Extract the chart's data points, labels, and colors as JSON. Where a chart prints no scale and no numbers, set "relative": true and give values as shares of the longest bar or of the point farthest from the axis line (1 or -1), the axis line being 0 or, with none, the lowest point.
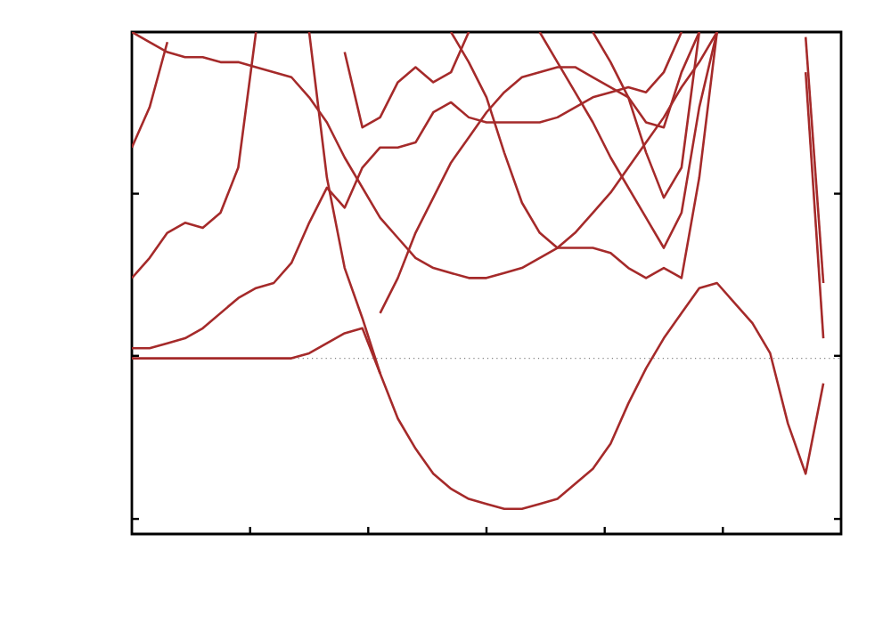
{
  "chart_data": {
    "type": "line",
    "relative": true,
    "color": "#a52a2a",
    "marker": "none",
    "line_style": "solid",
    "categories": [
      null,
      null,
      null,
      null,
      null,
      null,
      null,
      null,
      null,
      null,
      null,
      null,
      null,
      null,
      null,
      null,
      null,
      null,
      null,
      null,
      null,
      null,
      null,
      null,
      null,
      null,
      null,
      null,
      null,
      null,
      null,
      null,
      null,
      null,
      null,
      null,
      null,
      null,
      null,
      null,
      null
    ],
    "ref_lines": [
      {
        "axis": "y",
        "value": 0.35,
        "color": "#808080",
        "line_style": "dotted"
      }
    ],
    "series": [
      {
        "values": [
          0.35,
          0.35,
          0.35,
          0.35,
          0.35,
          0.35,
          0.35,
          0.35,
          0.35,
          0.35,
          0.36,
          0.38,
          0.4,
          0.41,
          0.32,
          0.23,
          0.17,
          0.12,
          0.09,
          0.07,
          0.06,
          0.05,
          0.05,
          0.06,
          0.07,
          0.1,
          0.13,
          0.18,
          0.26,
          0.33,
          0.39,
          0.44,
          0.49,
          0.5,
          0.46,
          0.42,
          0.36,
          0.22,
          0.12,
          0.3,
          null
        ]
      },
      {
        "values": [
          0.37,
          0.37,
          0.38,
          0.39,
          0.41,
          0.44,
          0.47,
          0.49,
          0.5,
          0.54,
          0.62,
          0.69,
          0.65,
          0.73,
          0.77,
          0.77,
          0.78,
          0.84,
          0.86,
          0.83,
          0.82,
          0.82,
          0.82,
          0.82,
          0.83,
          0.85,
          0.87,
          0.88,
          0.89,
          0.88,
          0.92,
          1.0,
          null,
          null,
          null,
          null,
          null,
          null,
          null,
          null,
          null
        ]
      },
      {
        "values": [
          0.51,
          0.55,
          0.6,
          0.62,
          0.61,
          0.64,
          0.73,
          1.0,
          null,
          null,
          null,
          null,
          null,
          null,
          null,
          null,
          null,
          null,
          null,
          null,
          null,
          null,
          null,
          null,
          null,
          null,
          null,
          null,
          null,
          null,
          null,
          null,
          null,
          null,
          null,
          null,
          null,
          null,
          null,
          null,
          null
        ]
      },
      {
        "values": [
          0.77,
          0.85,
          0.98,
          null,
          null,
          null,
          null,
          null,
          null,
          null,
          null,
          null,
          null,
          null,
          null,
          null,
          null,
          null,
          null,
          null,
          null,
          null,
          null,
          null,
          null,
          null,
          null,
          null,
          null,
          null,
          null,
          null,
          null,
          null,
          null,
          null,
          null,
          null,
          null,
          null,
          null
        ]
      },
      {
        "values": [
          1.0,
          0.98,
          0.96,
          0.95,
          0.95,
          0.94,
          0.94,
          0.93,
          0.92,
          0.91,
          0.87,
          0.82,
          0.75,
          0.69,
          0.63,
          0.59,
          0.55,
          0.53,
          0.52,
          0.51,
          0.51,
          0.52,
          0.53,
          0.55,
          0.57,
          0.6,
          0.64,
          0.68,
          0.73,
          0.78,
          0.83,
          0.89,
          0.94,
          1.0,
          null,
          null,
          null,
          null,
          null,
          null,
          null
        ]
      },
      {
        "values": [
          null,
          null,
          null,
          null,
          null,
          null,
          null,
          null,
          null,
          null,
          null,
          null,
          null,
          null,
          0.44,
          0.51,
          0.6,
          0.67,
          0.74,
          0.79,
          0.84,
          0.88,
          0.91,
          0.92,
          0.93,
          0.93,
          0.91,
          0.89,
          0.87,
          0.82,
          0.81,
          0.92,
          1.0,
          null,
          null,
          null,
          null,
          null,
          null,
          null,
          null
        ]
      },
      {
        "values": [
          null,
          null,
          null,
          null,
          null,
          null,
          null,
          null,
          null,
          null,
          1.0,
          0.71,
          0.53,
          0.43,
          0.32,
          null,
          null,
          null,
          null,
          null,
          null,
          null,
          null,
          null,
          null,
          null,
          null,
          null,
          null,
          null,
          null,
          null,
          null,
          null,
          null,
          null,
          null,
          null,
          null,
          null,
          null
        ]
      },
      {
        "values": [
          null,
          null,
          null,
          null,
          null,
          null,
          null,
          null,
          null,
          null,
          null,
          null,
          null,
          null,
          null,
          null,
          null,
          null,
          1.0,
          0.94,
          0.87,
          0.76,
          0.66,
          0.6,
          0.57,
          0.57,
          0.57,
          0.56,
          0.53,
          0.51,
          0.53,
          0.51,
          0.71,
          1.0,
          null,
          null,
          null,
          null,
          null,
          null,
          null
        ]
      },
      {
        "values": [
          null,
          null,
          null,
          null,
          null,
          null,
          null,
          null,
          null,
          null,
          null,
          null,
          0.96,
          0.81,
          0.83,
          0.9,
          0.93,
          0.9,
          0.92,
          1.0,
          null,
          null,
          null,
          null,
          null,
          null,
          null,
          null,
          null,
          null,
          null,
          null,
          null,
          null,
          null,
          null,
          null,
          null,
          null,
          null,
          null
        ]
      },
      {
        "values": [
          null,
          null,
          null,
          null,
          null,
          null,
          null,
          null,
          null,
          null,
          null,
          null,
          null,
          null,
          null,
          null,
          null,
          null,
          null,
          null,
          null,
          null,
          null,
          null,
          null,
          null,
          null,
          null,
          null,
          null,
          null,
          null,
          null,
          null,
          null,
          null,
          null,
          null,
          0.92,
          0.39,
          null
        ]
      },
      {
        "values": [
          null,
          null,
          null,
          null,
          null,
          null,
          null,
          null,
          null,
          null,
          null,
          null,
          null,
          null,
          null,
          null,
          null,
          null,
          null,
          null,
          null,
          null,
          null,
          null,
          null,
          null,
          null,
          null,
          null,
          null,
          null,
          null,
          null,
          null,
          null,
          null,
          null,
          null,
          0.99,
          0.5,
          null
        ]
      },
      {
        "values": [
          null,
          null,
          null,
          null,
          null,
          null,
          null,
          null,
          null,
          null,
          null,
          null,
          null,
          null,
          null,
          null,
          null,
          null,
          null,
          null,
          null,
          null,
          null,
          null,
          null,
          null,
          1.0,
          0.94,
          0.87,
          0.76,
          0.67,
          0.73,
          1.0,
          null,
          null,
          null,
          null,
          null,
          null,
          null,
          null
        ]
      },
      {
        "values": [
          null,
          null,
          null,
          null,
          null,
          null,
          null,
          null,
          null,
          null,
          null,
          null,
          null,
          null,
          null,
          null,
          null,
          null,
          null,
          null,
          null,
          null,
          null,
          1.0,
          0.94,
          0.88,
          0.82,
          0.75,
          0.69,
          0.63,
          0.57,
          0.64,
          0.85,
          1.0,
          null,
          null,
          null,
          null,
          null,
          null,
          null
        ]
      }
    ]
  }
}
